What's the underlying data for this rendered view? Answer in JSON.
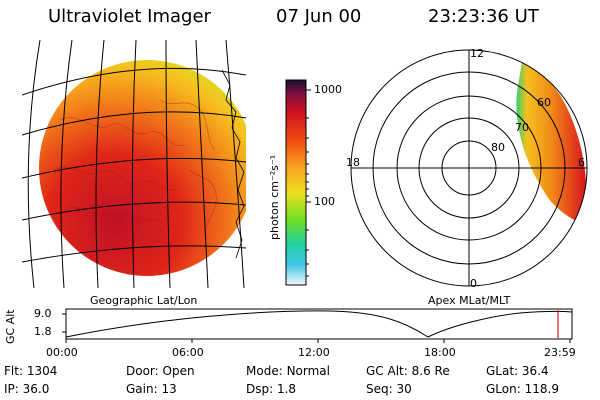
{
  "header": {
    "instrument": "Ultraviolet Imager",
    "date": "07 Jun 00",
    "time": "23:23:36 UT"
  },
  "colorbar": {
    "unit_label": "photon cm⁻²s⁻¹",
    "ticks": [
      "1000",
      "100"
    ],
    "scale": "log"
  },
  "polar": {
    "mlt_labels": {
      "top": "12",
      "left": "18",
      "right": "6",
      "bottom": "0"
    },
    "lat_labels": [
      "60",
      "70",
      "80"
    ]
  },
  "panel_labels": {
    "left": "Geographic Lat/Lon",
    "right": "Apex MLat/MLT"
  },
  "altitude_plot": {
    "ylabel": "GC Alt",
    "yticks": [
      "9.0",
      "1.8"
    ],
    "xticks": [
      "00:00",
      "06:00",
      "12:00",
      "18:00",
      "23:59"
    ],
    "current_time_marker": "23:23",
    "marker_color": "#cc2222"
  },
  "footer": {
    "row1": [
      {
        "key": "Flt:",
        "val": "1304"
      },
      {
        "key": "Door:",
        "val": "Open"
      },
      {
        "key": "Mode:",
        "val": "Normal"
      },
      {
        "key": "GC Alt:",
        "val": "8.6 Re"
      },
      {
        "key": "GLat:",
        "val": "36.4"
      }
    ],
    "row2": [
      {
        "key": "IP:",
        "val": "36.0"
      },
      {
        "key": "Gain:",
        "val": "13"
      },
      {
        "key": "Dsp:",
        "val": "1.8"
      },
      {
        "key": "Seq:",
        "val": "30"
      },
      {
        "key": "GLon:",
        "val": "118.9"
      }
    ]
  },
  "colors": {
    "aurora_high": "#d8141e",
    "aurora_mid": "#f5a21a",
    "aurora_low": "#e8e81e",
    "rim": "#22cc55"
  }
}
